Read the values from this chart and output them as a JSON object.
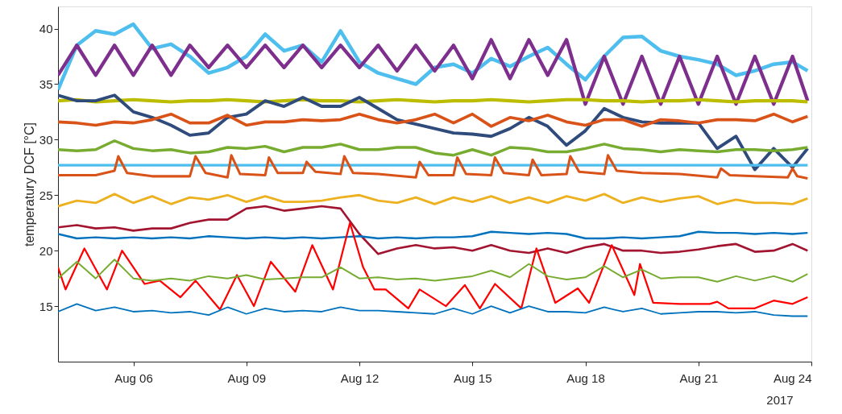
{
  "chart_data": {
    "type": "line",
    "ylabel": "temperatury DCF [°C]",
    "annotations": [
      "2017"
    ],
    "xlim": [
      "2017-08-04",
      "2017-08-24"
    ],
    "xticks": [
      {
        "value": "2017-08-06",
        "label": "Aug 06"
      },
      {
        "value": "2017-08-09",
        "label": "Aug 09"
      },
      {
        "value": "2017-08-12",
        "label": "Aug 12"
      },
      {
        "value": "2017-08-15",
        "label": "Aug 15"
      },
      {
        "value": "2017-08-18",
        "label": "Aug 18"
      },
      {
        "value": "2017-08-21",
        "label": "Aug 21"
      },
      {
        "value": "2017-08-24",
        "label": "Aug 24"
      }
    ],
    "ylim": [
      10,
      42
    ],
    "yticks": [
      15,
      20,
      25,
      30,
      35,
      40
    ],
    "grid": false,
    "x": [
      "2017-08-04T00:00",
      "2017-08-04T12:00",
      "2017-08-05T00:00",
      "2017-08-05T12:00",
      "2017-08-06T00:00",
      "2017-08-06T12:00",
      "2017-08-07T00:00",
      "2017-08-07T12:00",
      "2017-08-08T00:00",
      "2017-08-08T12:00",
      "2017-08-09T00:00",
      "2017-08-09T12:00",
      "2017-08-10T00:00",
      "2017-08-10T12:00",
      "2017-08-11T00:00",
      "2017-08-11T12:00",
      "2017-08-12T00:00",
      "2017-08-12T12:00",
      "2017-08-13T00:00",
      "2017-08-13T12:00",
      "2017-08-14T00:00",
      "2017-08-14T12:00",
      "2017-08-15T00:00",
      "2017-08-15T12:00",
      "2017-08-16T00:00",
      "2017-08-16T12:00",
      "2017-08-17T00:00",
      "2017-08-17T12:00",
      "2017-08-18T00:00",
      "2017-08-18T12:00",
      "2017-08-19T00:00",
      "2017-08-19T12:00",
      "2017-08-20T00:00",
      "2017-08-20T12:00",
      "2017-08-21T00:00",
      "2017-08-21T12:00",
      "2017-08-22T00:00",
      "2017-08-22T12:00",
      "2017-08-23T00:00",
      "2017-08-23T12:00",
      "2017-08-23T21:36"
    ],
    "series": [
      {
        "color": "#4dbeee",
        "values": [
          34.5,
          38.5,
          39.8,
          39.5,
          40.4,
          38.2,
          38.6,
          37.5,
          36,
          36.5,
          37.5,
          39.5,
          38,
          38.5,
          37,
          39.8,
          37,
          36,
          35.5,
          35,
          36.5,
          36.8,
          36,
          37.3,
          36.6,
          37.5,
          38.3,
          36.8,
          35.4,
          37.5,
          39.2,
          39.3,
          38,
          37.5,
          37.2,
          36.8,
          35.8,
          36.2,
          36.8,
          37,
          36.2
        ]
      },
      {
        "color": "#7e2f8e",
        "values": [
          35.8,
          38.5,
          35.8,
          38.5,
          35.8,
          38.5,
          35.8,
          38.5,
          36.5,
          38.5,
          36.5,
          38.5,
          36.5,
          38.5,
          36.5,
          38.5,
          36.5,
          38.5,
          36.2,
          38.5,
          36.2,
          38.5,
          35.5,
          39,
          35.5,
          39,
          35.8,
          39,
          33.2,
          37.5,
          33.2,
          37.5,
          33.2,
          37.5,
          33.2,
          37.5,
          33.2,
          37.5,
          33.2,
          37.5,
          33.5
        ]
      },
      {
        "color": "#bdbd00",
        "values": [
          33.5,
          33.6,
          33.4,
          33.5,
          33.6,
          33.5,
          33.4,
          33.5,
          33.5,
          33.6,
          33.5,
          33.4,
          33.5,
          33.6,
          33.5,
          33.5,
          33.4,
          33.5,
          33.6,
          33.5,
          33.4,
          33.5,
          33.5,
          33.6,
          33.5,
          33.4,
          33.5,
          33.6,
          33.6,
          33.5,
          33.5,
          33.4,
          33.5,
          33.5,
          33.6,
          33.5,
          33.4,
          33.5,
          33.5,
          33.5,
          33.4
        ]
      },
      {
        "color": "#2f4b7c",
        "values": [
          34,
          33.5,
          33.5,
          34,
          32.5,
          32,
          31.3,
          30.4,
          30.6,
          32,
          32.3,
          33.5,
          33,
          33.8,
          33,
          33,
          33.8,
          32.8,
          31.8,
          31.4,
          31,
          30.6,
          30.5,
          30.3,
          31,
          32,
          31.2,
          29.5,
          30.8,
          32.8,
          32,
          31.6,
          31.5,
          31.5,
          31.5,
          29.2,
          30.3,
          27.3,
          29.2,
          27.5,
          29.2
        ]
      },
      {
        "color": "#d95319",
        "values": [
          31.6,
          31.5,
          31.3,
          31.6,
          31.5,
          31.8,
          32.3,
          31.5,
          31.5,
          32.2,
          31.3,
          31.6,
          31.6,
          31.8,
          31.7,
          31.8,
          32.3,
          31.8,
          31.5,
          31.8,
          32.3,
          31.5,
          32.3,
          31.2,
          32,
          31.7,
          32.2,
          31.6,
          31.3,
          31.8,
          31.8,
          31.2,
          31.8,
          31.7,
          31.5,
          31.8,
          31.8,
          31.7,
          32.3,
          31.6,
          32.1
        ]
      },
      {
        "color": "#77ac30",
        "values": [
          29.1,
          29,
          29.1,
          29.9,
          29.2,
          29,
          29.1,
          28.8,
          28.9,
          29.3,
          29.2,
          29.4,
          28.9,
          29.3,
          29.3,
          29.6,
          29.1,
          29.1,
          29.3,
          29.3,
          28.8,
          28.6,
          29.1,
          28.6,
          29.3,
          29.2,
          28.9,
          28.9,
          29.2,
          29.6,
          29.2,
          29.1,
          28.9,
          29.1,
          29,
          28.9,
          29.1,
          29.1,
          29,
          29.1,
          29.3
        ]
      },
      {
        "color": "#4dbeee",
        "values": [
          27.7,
          27.7,
          27.7,
          27.7,
          27.7,
          27.7,
          27.7,
          27.7,
          27.7,
          27.7,
          27.7,
          27.7,
          27.7,
          27.7,
          27.7,
          27.7,
          27.7,
          27.7,
          27.7,
          27.7,
          27.7,
          27.7,
          27.7,
          27.7,
          27.7,
          27.7,
          27.7,
          27.7,
          27.7,
          27.7,
          27.7,
          27.7,
          27.7,
          27.7,
          27.7,
          27.7,
          27.7,
          27.7,
          27.7,
          27.7,
          27.7
        ]
      },
      {
        "color": "#d95319",
        "x": [
          "2017-08-04T00:00",
          "2017-08-05T00:00",
          "2017-08-05T12:00",
          "2017-08-05T14:24",
          "2017-08-05T20:00",
          "2017-08-06T12:00",
          "2017-08-07T12:00",
          "2017-08-07T15:36",
          "2017-08-07T22:00",
          "2017-08-08T12:00",
          "2017-08-08T14:24",
          "2017-08-08T20:00",
          "2017-08-09T12:00",
          "2017-08-09T14:24",
          "2017-08-09T20:00",
          "2017-08-10T12:00",
          "2017-08-10T14:24",
          "2017-08-10T20:00",
          "2017-08-11T12:00",
          "2017-08-11T14:24",
          "2017-08-11T20:00",
          "2017-08-12T12:00",
          "2017-08-13T12:00",
          "2017-08-13T14:24",
          "2017-08-13T20:00",
          "2017-08-14T12:00",
          "2017-08-14T14:24",
          "2017-08-14T20:00",
          "2017-08-15T12:00",
          "2017-08-15T14:24",
          "2017-08-15T20:00",
          "2017-08-16T12:00",
          "2017-08-16T14:24",
          "2017-08-16T20:00",
          "2017-08-17T12:00",
          "2017-08-17T14:24",
          "2017-08-17T20:00",
          "2017-08-18T12:00",
          "2017-08-18T14:24",
          "2017-08-18T20:00",
          "2017-08-19T12:00",
          "2017-08-20T12:00",
          "2017-08-21T12:00",
          "2017-08-21T14:24",
          "2017-08-21T20:00",
          "2017-08-22T12:00",
          "2017-08-23T09:00",
          "2017-08-23T12:00",
          "2017-08-23T15:00",
          "2017-08-23T21:36"
        ],
        "values": [
          26.8,
          26.8,
          27.2,
          28.5,
          27,
          26.7,
          26.7,
          28.5,
          27,
          26.6,
          28.6,
          26.9,
          26.8,
          28.4,
          27,
          27,
          28,
          27.1,
          26.9,
          28.5,
          27,
          26.9,
          26.6,
          28,
          26.8,
          26.8,
          28.4,
          26.9,
          26.8,
          28.4,
          27,
          26.8,
          28.2,
          26.8,
          26.9,
          28.5,
          27.1,
          26.9,
          28.6,
          27.2,
          27,
          26.9,
          26.6,
          27.4,
          26.8,
          26.7,
          26.6,
          27.4,
          26.7,
          26.5
        ]
      },
      {
        "color": "#edb120",
        "values": [
          24,
          24.5,
          24.3,
          25.1,
          24.3,
          24.9,
          24.2,
          24.8,
          24.6,
          25,
          24.4,
          24.9,
          24.4,
          24.4,
          24.5,
          24.8,
          25,
          24.5,
          24.3,
          24.8,
          24.2,
          24.8,
          24.4,
          24.9,
          24.3,
          24.8,
          24.3,
          24.9,
          24.5,
          25.1,
          24.3,
          24.8,
          24.4,
          24.7,
          24.9,
          24.2,
          24.6,
          24.3,
          24.3,
          24.2,
          24.7
        ]
      },
      {
        "color": "#a2142f",
        "values": [
          22.1,
          22.3,
          22,
          22.1,
          21.8,
          22,
          22,
          22.5,
          22.8,
          22.8,
          23.8,
          24,
          23.6,
          23.8,
          24,
          23.8,
          21.5,
          19.7,
          20.2,
          20.5,
          20.2,
          20.3,
          20,
          20.5,
          20,
          19.8,
          20.2,
          19.8,
          20.3,
          20.6,
          20,
          20,
          19.8,
          19.9,
          20.1,
          20.4,
          20.6,
          19.9,
          20,
          20.6,
          20
        ]
      },
      {
        "color": "#0072bd",
        "values": [
          21.5,
          21.1,
          21.2,
          21.1,
          21.2,
          21.1,
          21.2,
          21.1,
          21.3,
          21.2,
          21.1,
          21.2,
          21.1,
          21.2,
          21.1,
          21.2,
          21.3,
          21.1,
          21.2,
          21.1,
          21.2,
          21.2,
          21.3,
          21.7,
          21.6,
          21.5,
          21.6,
          21.5,
          21.1,
          21.1,
          21.2,
          21.1,
          21.2,
          21.3,
          21.7,
          21.6,
          21.6,
          21.5,
          21.6,
          21.5,
          21.6
        ]
      },
      {
        "color": "#ff0000",
        "x": [
          "2017-08-04T00:00",
          "2017-08-04T04:48",
          "2017-08-04T16:48",
          "2017-08-05T07:12",
          "2017-08-05T16:48",
          "2017-08-06T07:12",
          "2017-08-06T16:48",
          "2017-08-07T06:00",
          "2017-08-07T15:36",
          "2017-08-08T07:12",
          "2017-08-08T18:00",
          "2017-08-09T04:48",
          "2017-08-09T15:36",
          "2017-08-10T07:12",
          "2017-08-10T18:00",
          "2017-08-11T07:12",
          "2017-08-11T18:00",
          "2017-08-12T02:24",
          "2017-08-12T09:36",
          "2017-08-12T16:48",
          "2017-08-13T07:12",
          "2017-08-13T14:24",
          "2017-08-14T07:12",
          "2017-08-14T19:12",
          "2017-08-15T04:48",
          "2017-08-15T14:24",
          "2017-08-16T07:12",
          "2017-08-16T16:48",
          "2017-08-17T04:48",
          "2017-08-17T19:12",
          "2017-08-18T02:24",
          "2017-08-18T16:48",
          "2017-08-19T07:12",
          "2017-08-19T10:48",
          "2017-08-19T19:12",
          "2017-08-20T12:00",
          "2017-08-21T07:12",
          "2017-08-21T12:00",
          "2017-08-21T19:12",
          "2017-08-22T12:00",
          "2017-08-23T00:00",
          "2017-08-23T12:00",
          "2017-08-23T21:36"
        ],
        "values": [
          18.5,
          16.5,
          20.2,
          16.5,
          20,
          17,
          17.3,
          15.8,
          17.3,
          14.7,
          17.8,
          15,
          19,
          16.3,
          20.5,
          16.5,
          22.5,
          18.5,
          16.5,
          16.5,
          14.8,
          16.5,
          15,
          16.9,
          14.8,
          17,
          14.8,
          20.2,
          15.3,
          16.6,
          15.3,
          20.5,
          16,
          18.8,
          15.3,
          15.2,
          15.2,
          15.4,
          14.8,
          14.8,
          15.5,
          15.2,
          15.8
        ]
      },
      {
        "color": "#77ac30",
        "values": [
          17.5,
          19,
          17.5,
          19.2,
          17.5,
          17.3,
          17.5,
          17.3,
          17.7,
          17.5,
          17.8,
          17.4,
          17.5,
          17.6,
          17.6,
          18.5,
          17.5,
          17.6,
          17.4,
          17.5,
          17.3,
          17.5,
          17.7,
          18.2,
          17.6,
          18.8,
          17.7,
          17.4,
          17.6,
          18.6,
          17.6,
          18.3,
          17.5,
          17.6,
          17.6,
          17.2,
          17.7,
          17.3,
          17.7,
          17.2,
          17.9
        ]
      },
      {
        "color": "#0072bd",
        "values": [
          14.5,
          15.2,
          14.6,
          14.9,
          14.5,
          14.6,
          14.4,
          14.5,
          14.2,
          14.9,
          14.3,
          14.8,
          14.5,
          14.6,
          14.5,
          14.9,
          14.6,
          14.6,
          14.5,
          14.4,
          14.3,
          14.8,
          14.3,
          15,
          14.4,
          15,
          14.5,
          14.5,
          14.4,
          14.9,
          14.5,
          14.8,
          14.3,
          14.4,
          14.5,
          14.5,
          14.4,
          14.5,
          14.2,
          14.1,
          14.1
        ]
      }
    ]
  }
}
